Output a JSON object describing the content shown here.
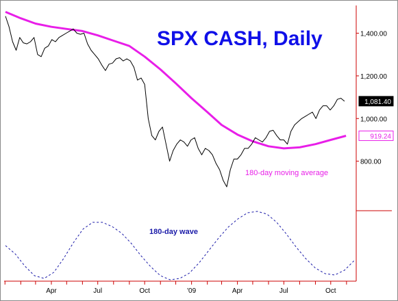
{
  "chart_data": {
    "type": "line",
    "title": "SPX CASH, Daily",
    "colors": {
      "price": "#000000",
      "moving_average": "#e81ee8",
      "wave": "#1a1aa8",
      "title": "#1010e8",
      "axis": "#cc0000"
    },
    "x_axis": {
      "ticks": [
        "Apr",
        "Jul",
        "Oct",
        "'09",
        "Apr",
        "Jul",
        "Oct"
      ],
      "range": [
        "2008-01-02",
        "2009-11-20"
      ]
    },
    "y_axis": {
      "ticks": [
        "800.00",
        "1,000.00",
        "1,200.00",
        "1,400.00"
      ],
      "tick_values": [
        800,
        1000,
        1200,
        1400
      ],
      "ylim": [
        600,
        1530
      ],
      "position": "right"
    },
    "price_tags": [
      {
        "label": "1,081.40",
        "value": 1081.4,
        "style": "dark"
      },
      {
        "label": "919.24",
        "value": 919.24,
        "style": "magenta"
      }
    ],
    "annotations": {
      "moving_average": "180-day moving average",
      "wave": "180-day wave"
    },
    "series": [
      {
        "name": "180-day moving average",
        "dates": [
          "2008-01-02",
          "2008-02-01",
          "2008-03-01",
          "2008-04-01",
          "2008-05-01",
          "2008-06-01",
          "2008-07-01",
          "2008-08-01",
          "2008-09-01",
          "2008-10-01",
          "2008-11-01",
          "2008-12-01",
          "2009-01-01",
          "2009-02-01",
          "2009-03-01",
          "2009-04-01",
          "2009-05-01",
          "2009-06-01",
          "2009-07-01",
          "2009-08-01",
          "2009-09-01",
          "2009-10-01",
          "2009-10-31"
        ],
        "values": [
          1500,
          1470,
          1445,
          1430,
          1420,
          1410,
          1390,
          1365,
          1340,
          1290,
          1230,
          1165,
          1095,
          1030,
          970,
          925,
          893,
          870,
          860,
          865,
          880,
          900,
          919
        ]
      },
      {
        "name": "SPX",
        "dates": [
          "2008-01-02",
          "2008-01-09",
          "2008-01-16",
          "2008-01-23",
          "2008-01-30",
          "2008-02-06",
          "2008-02-13",
          "2008-02-20",
          "2008-02-27",
          "2008-03-05",
          "2008-03-12",
          "2008-03-19",
          "2008-03-26",
          "2008-04-02",
          "2008-04-09",
          "2008-04-16",
          "2008-04-23",
          "2008-04-30",
          "2008-05-07",
          "2008-05-14",
          "2008-05-21",
          "2008-05-28",
          "2008-06-04",
          "2008-06-11",
          "2008-06-18",
          "2008-06-25",
          "2008-07-02",
          "2008-07-09",
          "2008-07-16",
          "2008-07-23",
          "2008-07-30",
          "2008-08-06",
          "2008-08-13",
          "2008-08-20",
          "2008-08-27",
          "2008-09-03",
          "2008-09-10",
          "2008-09-17",
          "2008-09-24",
          "2008-10-01",
          "2008-10-08",
          "2008-10-15",
          "2008-10-22",
          "2008-10-29",
          "2008-11-05",
          "2008-11-12",
          "2008-11-19",
          "2008-11-26",
          "2008-12-03",
          "2008-12-10",
          "2008-12-17",
          "2008-12-24",
          "2008-12-31",
          "2009-01-07",
          "2009-01-14",
          "2009-01-21",
          "2009-01-28",
          "2009-02-04",
          "2009-02-11",
          "2009-02-18",
          "2009-02-25",
          "2009-03-04",
          "2009-03-11",
          "2009-03-18",
          "2009-03-25",
          "2009-04-01",
          "2009-04-08",
          "2009-04-15",
          "2009-04-22",
          "2009-04-29",
          "2009-05-06",
          "2009-05-13",
          "2009-05-20",
          "2009-05-27",
          "2009-06-03",
          "2009-06-10",
          "2009-06-17",
          "2009-06-24",
          "2009-07-01",
          "2009-07-08",
          "2009-07-15",
          "2009-07-22",
          "2009-07-29",
          "2009-08-05",
          "2009-08-12",
          "2009-08-19",
          "2009-08-26",
          "2009-09-02",
          "2009-09-09",
          "2009-09-16",
          "2009-09-23",
          "2009-09-30",
          "2009-10-07",
          "2009-10-14",
          "2009-10-21",
          "2009-10-28"
        ],
        "values": [
          1480,
          1430,
          1360,
          1320,
          1380,
          1355,
          1350,
          1360,
          1380,
          1300,
          1290,
          1330,
          1340,
          1370,
          1360,
          1380,
          1390,
          1400,
          1410,
          1420,
          1400,
          1395,
          1400,
          1350,
          1320,
          1300,
          1280,
          1250,
          1225,
          1255,
          1260,
          1280,
          1285,
          1270,
          1280,
          1270,
          1240,
          1180,
          1190,
          1160,
          1000,
          920,
          900,
          940,
          960,
          880,
          800,
          850,
          880,
          900,
          890,
          870,
          900,
          910,
          860,
          830,
          860,
          850,
          830,
          790,
          760,
          710,
          680,
          760,
          810,
          810,
          830,
          860,
          860,
          880,
          910,
          900,
          890,
          910,
          940,
          945,
          920,
          900,
          900,
          880,
          940,
          970,
          985,
          1000,
          1010,
          1020,
          1030,
          1000,
          1040,
          1060,
          1060,
          1040,
          1060,
          1090,
          1095,
          1081
        ]
      },
      {
        "name": "180-day wave",
        "dates": [
          "2008-01-02",
          "2008-01-21",
          "2008-02-09",
          "2008-02-28",
          "2008-03-18",
          "2008-04-06",
          "2008-04-25",
          "2008-05-14",
          "2008-06-02",
          "2008-06-21",
          "2008-07-10",
          "2008-07-29",
          "2008-08-17",
          "2008-09-05",
          "2008-09-24",
          "2008-10-13",
          "2008-11-01",
          "2008-11-20",
          "2008-12-09",
          "2008-12-28",
          "2009-01-16",
          "2009-02-04",
          "2009-02-23",
          "2009-03-14",
          "2009-04-02",
          "2009-04-21",
          "2009-05-10",
          "2009-05-29",
          "2009-06-17",
          "2009-07-06",
          "2009-07-25",
          "2009-08-13",
          "2009-09-01",
          "2009-09-20",
          "2009-10-09",
          "2009-10-28",
          "2009-11-16"
        ],
        "values": [
          0.0,
          -0.24,
          -0.6,
          -0.88,
          -0.96,
          -0.78,
          -0.38,
          0.08,
          0.48,
          0.68,
          0.68,
          0.56,
          0.36,
          0.06,
          -0.3,
          -0.62,
          -0.88,
          -1.0,
          -0.96,
          -0.8,
          -0.5,
          -0.14,
          0.22,
          0.54,
          0.78,
          0.96,
          1.0,
          0.92,
          0.68,
          0.34,
          -0.04,
          -0.38,
          -0.66,
          -0.82,
          -0.86,
          -0.72,
          -0.44
        ]
      }
    ]
  }
}
